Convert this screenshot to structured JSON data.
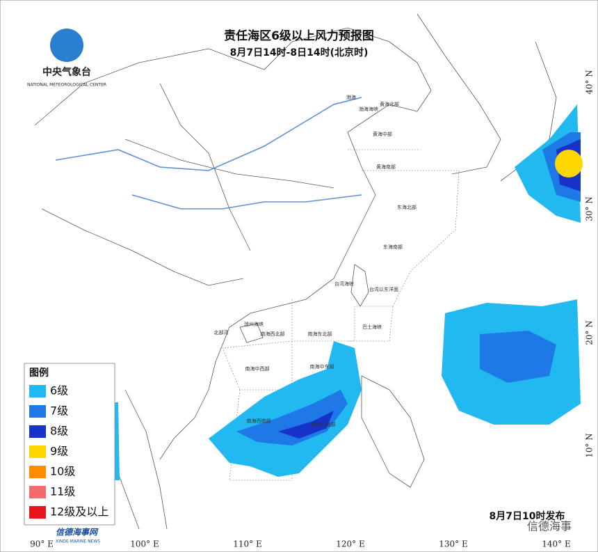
{
  "header": {
    "org_name": "中央气象台",
    "org_name_en": "NATIONAL METEOROLOGICAL CENTER",
    "title": "责任海区6级以上风力预报图",
    "subtitle": "8月7日14时-8日14时(北京时)"
  },
  "sea_areas": [
    "渤海",
    "渤海海峡",
    "黄海北部",
    "黄海中部",
    "黄海南部",
    "东海北部",
    "东海南部",
    "台湾海峡",
    "台湾以东洋面",
    "巴士海峡",
    "北部湾",
    "琼州海峡",
    "南海西北部",
    "南海东北部",
    "南海中西部",
    "南海中东部",
    "南海西南部",
    "南海东南部"
  ],
  "longitudes": [
    "90° E",
    "100° E",
    "110° E",
    "120° E",
    "130° E",
    "140° E"
  ],
  "latitudes": [
    "40° N",
    "30° N",
    "20° N",
    "10° N"
  ],
  "legend": {
    "title": "图例",
    "items": [
      {
        "label": "6级",
        "color": "#22b8f0"
      },
      {
        "label": "7级",
        "color": "#1e78e6"
      },
      {
        "label": "8级",
        "color": "#1632c8"
      },
      {
        "label": "9级",
        "color": "#ffd700"
      },
      {
        "label": "10级",
        "color": "#ff8c00"
      },
      {
        "label": "11级",
        "color": "#f56a6a"
      },
      {
        "label": "12级及以上",
        "color": "#e8141e"
      }
    ]
  },
  "footer": {
    "issue_time": "8月7日10时发布",
    "watermark": "信德海事",
    "site_name": "信德海事网",
    "site_name_en": "XINDE MARINE NEWS"
  }
}
